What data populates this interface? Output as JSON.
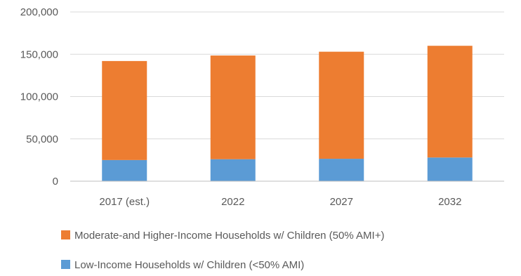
{
  "chart_data": {
    "type": "bar",
    "stacked": true,
    "categories": [
      "2017 (est.)",
      "2022",
      "2027",
      "2032"
    ],
    "series": [
      {
        "name": "Low-Income Households w/ Children (<50% AMI)",
        "color": "#5b9bd5",
        "values": [
          25000,
          26000,
          26500,
          28000
        ]
      },
      {
        "name": "Moderate-and Higher-Income Households w/ Children (50% AMI+)",
        "color": "#ed7d31",
        "values": [
          117000,
          122500,
          126500,
          132000
        ]
      }
    ],
    "ylim": [
      0,
      200000
    ],
    "yticks": [
      0,
      50000,
      100000,
      150000,
      200000
    ],
    "ytick_labels": [
      "0",
      "50,000",
      "100,000",
      "150,000",
      "200,000"
    ],
    "grid": true,
    "legend_position": "bottom",
    "legend_order": [
      1,
      0
    ]
  }
}
